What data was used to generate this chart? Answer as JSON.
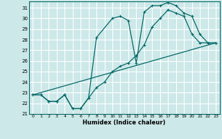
{
  "xlabel": "Humidex (Indice chaleur)",
  "background_color": "#cde8e8",
  "grid_color": "#ffffff",
  "line_color": "#006666",
  "xlim": [
    -0.5,
    23.5
  ],
  "ylim": [
    21,
    31.6
  ],
  "xticks": [
    0,
    1,
    2,
    3,
    4,
    5,
    6,
    7,
    8,
    9,
    10,
    11,
    12,
    13,
    14,
    15,
    16,
    17,
    18,
    19,
    20,
    21,
    22,
    23
  ],
  "yticks": [
    21,
    22,
    23,
    24,
    25,
    26,
    27,
    28,
    29,
    30,
    31
  ],
  "line1_x": [
    0,
    1,
    2,
    3,
    4,
    5,
    6,
    7,
    8,
    10,
    11,
    12,
    13,
    14,
    15,
    16,
    17,
    18,
    19,
    20,
    21,
    22,
    23
  ],
  "line1_y": [
    22.8,
    22.8,
    22.2,
    22.2,
    22.8,
    21.5,
    21.5,
    22.5,
    28.2,
    30.0,
    30.2,
    29.8,
    25.8,
    30.6,
    31.2,
    31.2,
    31.5,
    31.2,
    30.5,
    30.2,
    28.5,
    27.7,
    27.7
  ],
  "line2_x": [
    0,
    1,
    2,
    3,
    4,
    5,
    6,
    7,
    8,
    9,
    10,
    11,
    12,
    13,
    14,
    15,
    16,
    17,
    18,
    19,
    20,
    21,
    22,
    23
  ],
  "line2_y": [
    22.8,
    22.8,
    22.2,
    22.2,
    22.8,
    21.5,
    21.5,
    22.5,
    23.5,
    24.0,
    25.0,
    25.5,
    25.8,
    26.5,
    27.5,
    29.2,
    30.0,
    30.8,
    30.5,
    30.2,
    28.5,
    27.7,
    27.7,
    27.7
  ],
  "line3_x": [
    0,
    23
  ],
  "line3_y": [
    22.8,
    27.7
  ]
}
